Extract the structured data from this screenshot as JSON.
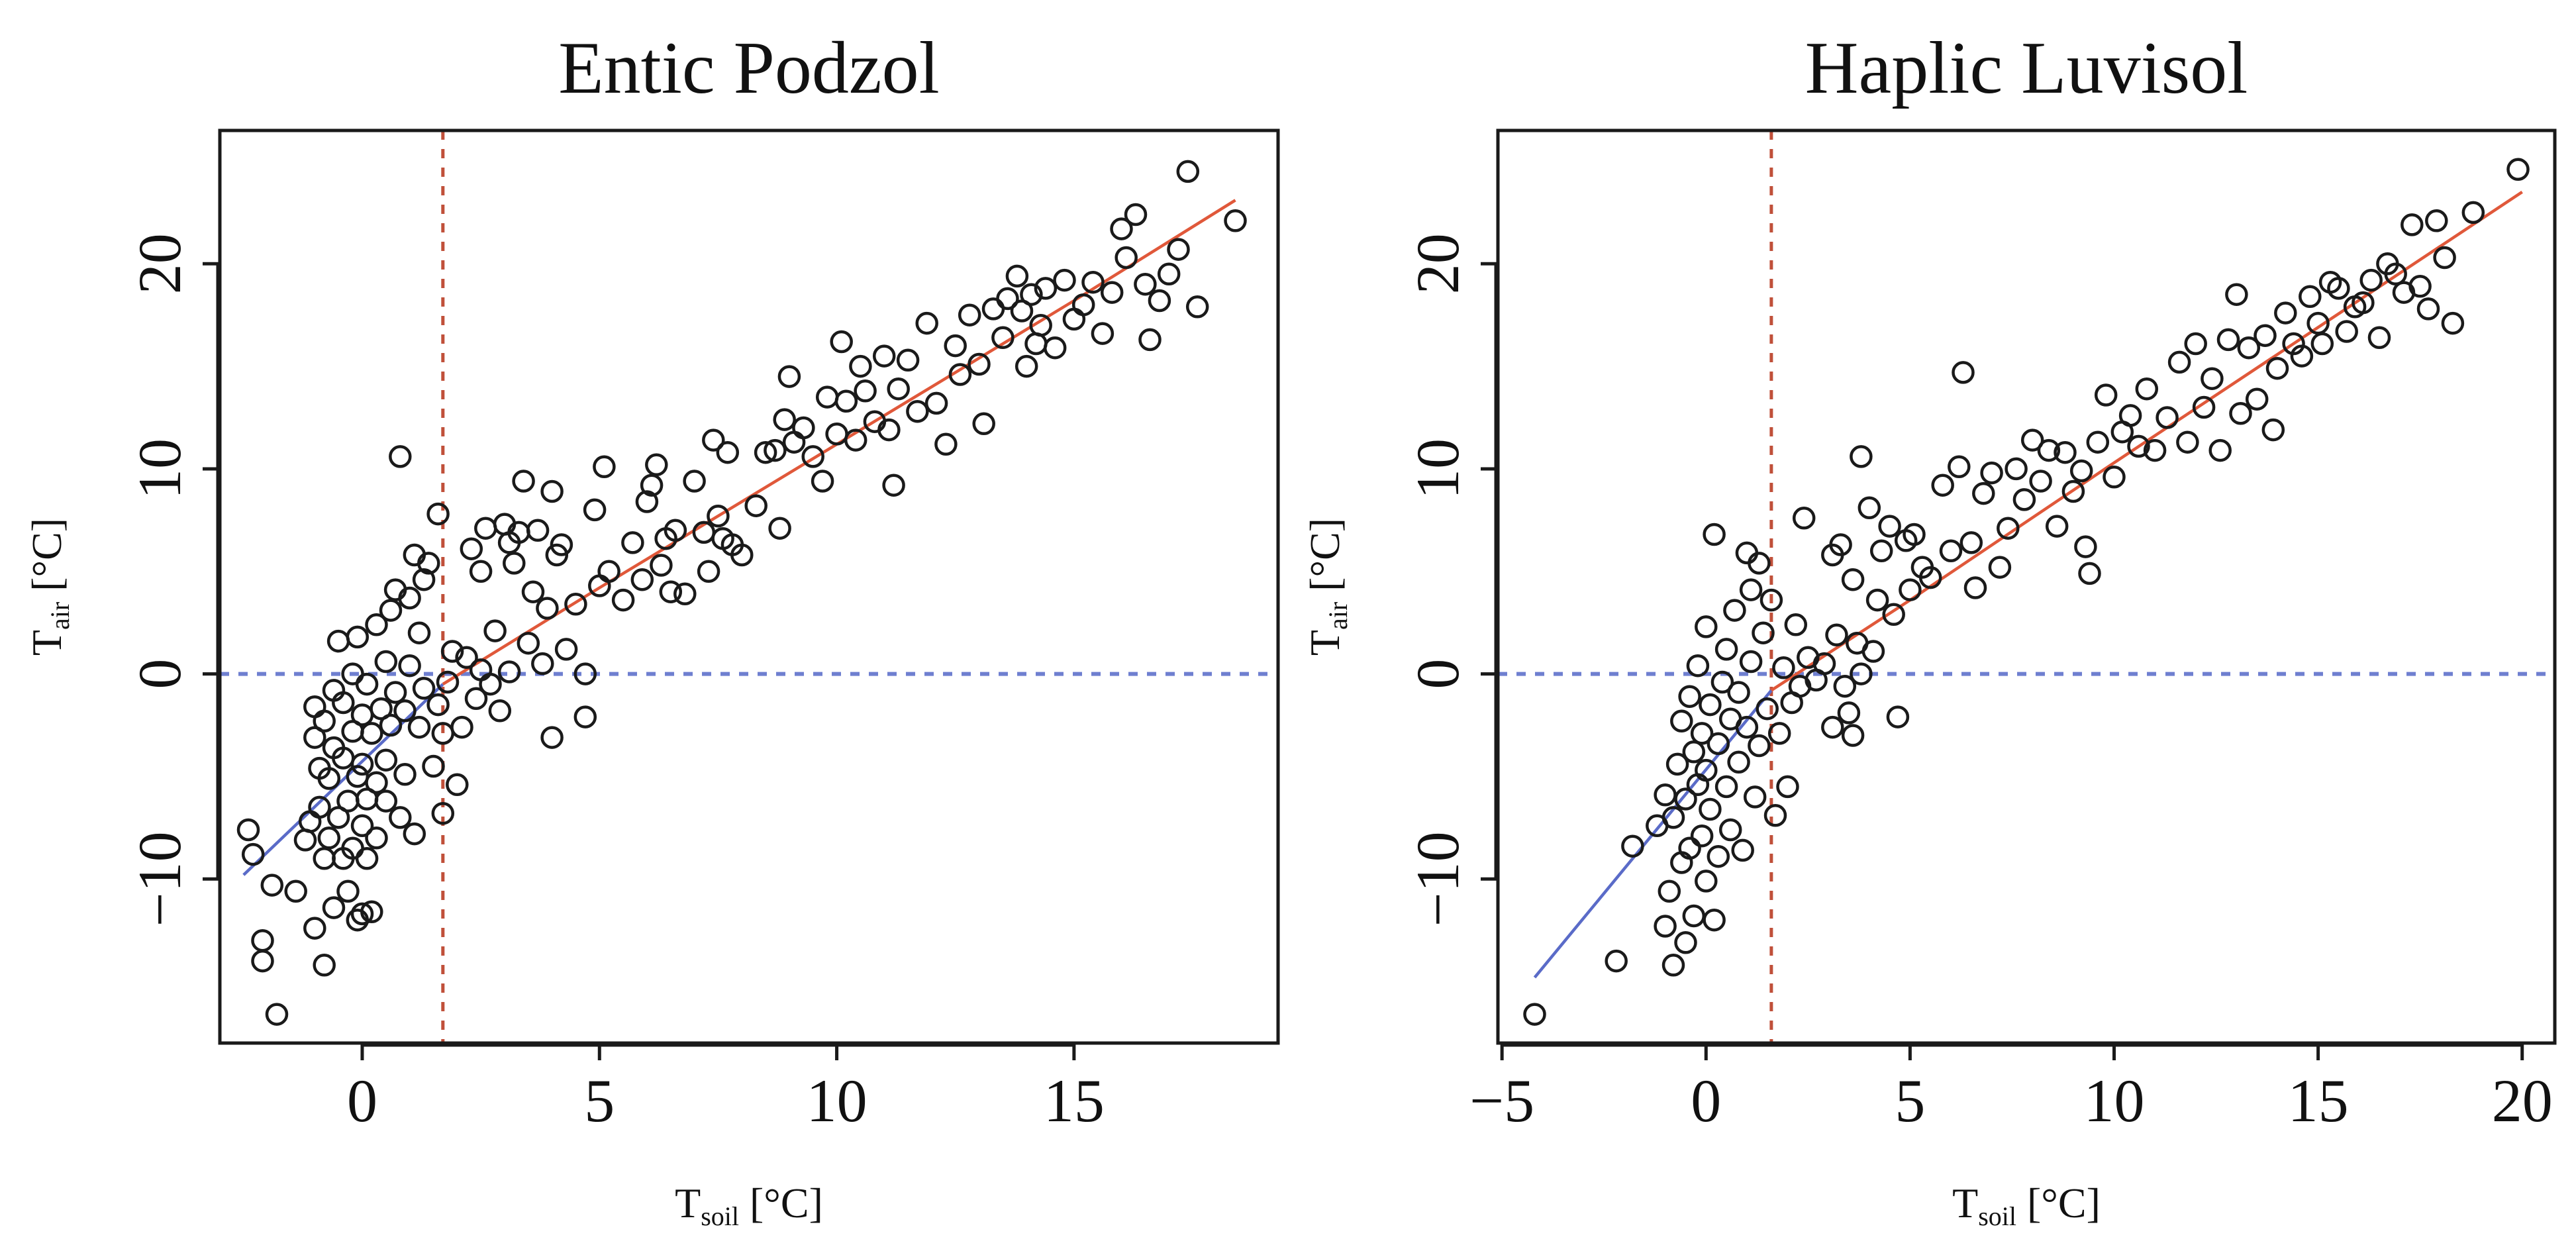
{
  "chart_data": [
    {
      "type": "scatter",
      "title": "Entic Podzol",
      "xlabel": {
        "base": "T",
        "sub": "soil",
        "unit": " [°C]"
      },
      "ylabel": {
        "base": "T",
        "sub": "air",
        "unit": " [°C]"
      },
      "xlim": [
        -3,
        19.3
      ],
      "ylim": [
        -18,
        26.5
      ],
      "xticks": [
        "0",
        "5",
        "10",
        "15"
      ],
      "yticks": [
        "-10",
        "0",
        "10",
        "20"
      ],
      "xticks_values": [
        0,
        5,
        10,
        15
      ],
      "yticks_values": [
        -10,
        0,
        10,
        20
      ],
      "threshold_x": 1.7,
      "reference_y": 0,
      "fit_low": [
        [
          -2.5,
          -9.8
        ],
        [
          1.7,
          -0.5
        ]
      ],
      "fit_high": [
        [
          1.7,
          -0.5
        ],
        [
          5,
          4.2
        ],
        [
          10,
          11.2
        ],
        [
          15,
          18.2
        ],
        [
          18.4,
          23.1
        ]
      ],
      "points": [
        [
          -2.4,
          -7.6
        ],
        [
          -2.3,
          -8.8
        ],
        [
          -2.1,
          -13
        ],
        [
          -2.1,
          -14
        ],
        [
          -1.9,
          -10.3
        ],
        [
          -1.8,
          -16.6
        ],
        [
          -1.4,
          -10.6
        ],
        [
          -1.2,
          -8.1
        ],
        [
          -1.1,
          -7.2
        ],
        [
          -1.0,
          -12.4
        ],
        [
          -1.0,
          -1.6
        ],
        [
          -1.0,
          -3.1
        ],
        [
          -0.9,
          -4.6
        ],
        [
          -0.9,
          -6.5
        ],
        [
          -0.8,
          -9.0
        ],
        [
          -0.8,
          -2.3
        ],
        [
          -0.8,
          -14.2
        ],
        [
          -0.7,
          -5.1
        ],
        [
          -0.7,
          -8.0
        ],
        [
          -0.6,
          -11.4
        ],
        [
          -0.6,
          -3.6
        ],
        [
          -0.6,
          -0.8
        ],
        [
          -0.5,
          -7.0
        ],
        [
          -0.5,
          1.6
        ],
        [
          -0.4,
          -9.0
        ],
        [
          -0.4,
          -4.1
        ],
        [
          -0.4,
          -1.4
        ],
        [
          -0.3,
          -6.2
        ],
        [
          -0.3,
          -10.6
        ],
        [
          -0.2,
          -2.8
        ],
        [
          -0.2,
          0.0
        ],
        [
          -0.2,
          -8.5
        ],
        [
          -0.1,
          -12.0
        ],
        [
          -0.1,
          -5.0
        ],
        [
          -0.1,
          1.8
        ],
        [
          0.0,
          -7.4
        ],
        [
          0.0,
          -2.0
        ],
        [
          0.0,
          -11.7
        ],
        [
          0.0,
          -4.4
        ],
        [
          0.1,
          -6.1
        ],
        [
          0.1,
          -0.5
        ],
        [
          0.1,
          -9.0
        ],
        [
          0.2,
          -2.9
        ],
        [
          0.2,
          -11.6
        ],
        [
          0.3,
          2.4
        ],
        [
          0.3,
          -5.3
        ],
        [
          0.3,
          -8.0
        ],
        [
          0.4,
          -1.7
        ],
        [
          0.5,
          0.6
        ],
        [
          0.5,
          -6.2
        ],
        [
          0.5,
          -4.2
        ],
        [
          0.6,
          3.1
        ],
        [
          0.6,
          -2.5
        ],
        [
          0.7,
          -0.9
        ],
        [
          0.7,
          4.1
        ],
        [
          0.8,
          10.6
        ],
        [
          0.8,
          -7.0
        ],
        [
          0.9,
          -4.9
        ],
        [
          0.9,
          -1.8
        ],
        [
          1.0,
          3.7
        ],
        [
          1.0,
          0.4
        ],
        [
          1.1,
          5.8
        ],
        [
          1.1,
          -7.8
        ],
        [
          1.2,
          2.0
        ],
        [
          1.2,
          -2.6
        ],
        [
          1.3,
          4.6
        ],
        [
          1.3,
          -0.7
        ],
        [
          1.4,
          5.4
        ],
        [
          1.5,
          -4.5
        ],
        [
          1.6,
          7.8
        ],
        [
          1.6,
          -1.5
        ],
        [
          1.7,
          -2.9
        ],
        [
          1.7,
          -6.8
        ],
        [
          1.8,
          -0.4
        ],
        [
          1.9,
          1.1
        ],
        [
          2.0,
          -5.4
        ],
        [
          2.1,
          -2.6
        ],
        [
          2.2,
          0.8
        ],
        [
          2.3,
          6.1
        ],
        [
          2.4,
          -1.2
        ],
        [
          2.5,
          5.0
        ],
        [
          2.5,
          0.2
        ],
        [
          2.6,
          7.1
        ],
        [
          2.7,
          -0.5
        ],
        [
          2.8,
          2.1
        ],
        [
          2.9,
          -1.8
        ],
        [
          3.0,
          7.3
        ],
        [
          3.1,
          6.4
        ],
        [
          3.1,
          0.1
        ],
        [
          3.2,
          5.4
        ],
        [
          3.3,
          6.9
        ],
        [
          3.4,
          9.4
        ],
        [
          3.5,
          1.5
        ],
        [
          3.6,
          4.0
        ],
        [
          3.7,
          7.0
        ],
        [
          3.8,
          0.5
        ],
        [
          3.9,
          3.2
        ],
        [
          4.0,
          -3.1
        ],
        [
          4.0,
          8.9
        ],
        [
          4.1,
          5.8
        ],
        [
          4.2,
          6.3
        ],
        [
          4.3,
          1.2
        ],
        [
          4.5,
          3.4
        ],
        [
          4.7,
          -2.1
        ],
        [
          4.7,
          0.0
        ],
        [
          4.9,
          8.0
        ],
        [
          5.0,
          4.3
        ],
        [
          5.1,
          10.1
        ],
        [
          5.2,
          5.0
        ],
        [
          5.5,
          3.6
        ],
        [
          5.7,
          6.4
        ],
        [
          5.9,
          4.6
        ],
        [
          6.0,
          8.4
        ],
        [
          6.1,
          9.2
        ],
        [
          6.2,
          10.2
        ],
        [
          6.3,
          5.3
        ],
        [
          6.4,
          6.6
        ],
        [
          6.5,
          4.0
        ],
        [
          6.6,
          7.0
        ],
        [
          6.8,
          3.9
        ],
        [
          7.0,
          9.4
        ],
        [
          7.2,
          6.9
        ],
        [
          7.3,
          5.0
        ],
        [
          7.4,
          11.4
        ],
        [
          7.5,
          7.7
        ],
        [
          7.6,
          6.6
        ],
        [
          7.7,
          10.8
        ],
        [
          7.8,
          6.3
        ],
        [
          8.0,
          5.8
        ],
        [
          8.3,
          8.2
        ],
        [
          8.5,
          10.8
        ],
        [
          8.7,
          10.9
        ],
        [
          8.8,
          7.1
        ],
        [
          8.9,
          12.4
        ],
        [
          9.0,
          14.5
        ],
        [
          9.1,
          11.3
        ],
        [
          9.3,
          12.0
        ],
        [
          9.5,
          10.6
        ],
        [
          9.7,
          9.4
        ],
        [
          9.8,
          13.5
        ],
        [
          10.0,
          11.7
        ],
        [
          10.1,
          16.2
        ],
        [
          10.2,
          13.3
        ],
        [
          10.4,
          11.4
        ],
        [
          10.5,
          15.0
        ],
        [
          10.6,
          13.8
        ],
        [
          10.8,
          12.3
        ],
        [
          11.0,
          15.5
        ],
        [
          11.1,
          11.9
        ],
        [
          11.2,
          9.2
        ],
        [
          11.3,
          13.9
        ],
        [
          11.5,
          15.3
        ],
        [
          11.7,
          12.8
        ],
        [
          11.9,
          17.1
        ],
        [
          12.1,
          13.2
        ],
        [
          12.3,
          11.2
        ],
        [
          12.5,
          16.0
        ],
        [
          12.6,
          14.6
        ],
        [
          12.8,
          17.5
        ],
        [
          13.0,
          15.1
        ],
        [
          13.1,
          12.2
        ],
        [
          13.3,
          17.8
        ],
        [
          13.5,
          16.4
        ],
        [
          13.6,
          18.3
        ],
        [
          13.8,
          19.4
        ],
        [
          13.9,
          17.7
        ],
        [
          14.0,
          15.0
        ],
        [
          14.1,
          18.5
        ],
        [
          14.2,
          16.1
        ],
        [
          14.3,
          17.0
        ],
        [
          14.4,
          18.8
        ],
        [
          14.6,
          15.9
        ],
        [
          14.8,
          19.2
        ],
        [
          15.0,
          17.3
        ],
        [
          15.2,
          18.0
        ],
        [
          15.4,
          19.1
        ],
        [
          15.6,
          16.6
        ],
        [
          15.8,
          18.6
        ],
        [
          16.0,
          21.7
        ],
        [
          16.1,
          20.3
        ],
        [
          16.3,
          22.4
        ],
        [
          16.5,
          19.0
        ],
        [
          16.6,
          16.3
        ],
        [
          16.8,
          18.2
        ],
        [
          17.0,
          19.5
        ],
        [
          17.2,
          20.7
        ],
        [
          17.4,
          24.5
        ],
        [
          17.6,
          17.9
        ],
        [
          18.4,
          22.1
        ]
      ]
    },
    {
      "type": "scatter",
      "title": "Haplic Luvisol",
      "xlabel": {
        "base": "T",
        "sub": "soil",
        "unit": " [°C]"
      },
      "ylabel": {
        "base": "T",
        "sub": "air",
        "unit": " [°C]"
      },
      "xlim": [
        -5.1,
        20.8
      ],
      "ylim": [
        -18,
        26.5
      ],
      "xticks": [
        "-5",
        "0",
        "5",
        "10",
        "15",
        "20"
      ],
      "yticks": [
        "-10",
        "0",
        "10",
        "20"
      ],
      "xticks_values": [
        -5,
        0,
        5,
        10,
        15,
        20
      ],
      "yticks_values": [
        -10,
        0,
        10,
        20
      ],
      "threshold_x": 1.6,
      "reference_y": 0,
      "fit_low": [
        [
          -4.2,
          -14.8
        ],
        [
          1.6,
          -0.8
        ]
      ],
      "fit_high": [
        [
          1.6,
          -0.8
        ],
        [
          5,
          3.6
        ],
        [
          10,
          10.3
        ],
        [
          15,
          16.9
        ],
        [
          20,
          23.5
        ]
      ],
      "points": [
        [
          -4.2,
          -16.6
        ],
        [
          -2.2,
          -14.0
        ],
        [
          -1.8,
          -8.4
        ],
        [
          -1.2,
          -7.4
        ],
        [
          -1.0,
          -5.9
        ],
        [
          -1.0,
          -12.3
        ],
        [
          -0.9,
          -10.6
        ],
        [
          -0.8,
          -14.2
        ],
        [
          -0.8,
          -7.0
        ],
        [
          -0.7,
          -4.4
        ],
        [
          -0.6,
          -9.2
        ],
        [
          -0.6,
          -2.3
        ],
        [
          -0.5,
          -13.1
        ],
        [
          -0.5,
          -6.1
        ],
        [
          -0.4,
          -1.1
        ],
        [
          -0.4,
          -8.5
        ],
        [
          -0.3,
          -3.8
        ],
        [
          -0.3,
          -11.8
        ],
        [
          -0.2,
          -5.4
        ],
        [
          -0.2,
          0.4
        ],
        [
          -0.1,
          -7.9
        ],
        [
          -0.1,
          -2.9
        ],
        [
          0.0,
          -10.1
        ],
        [
          0.0,
          -4.7
        ],
        [
          0.0,
          2.3
        ],
        [
          0.1,
          -6.6
        ],
        [
          0.1,
          -1.5
        ],
        [
          0.2,
          -12.0
        ],
        [
          0.2,
          6.8
        ],
        [
          0.3,
          -3.4
        ],
        [
          0.3,
          -8.9
        ],
        [
          0.4,
          -0.4
        ],
        [
          0.5,
          -5.5
        ],
        [
          0.5,
          1.2
        ],
        [
          0.6,
          -2.2
        ],
        [
          0.6,
          -7.6
        ],
        [
          0.7,
          3.1
        ],
        [
          0.8,
          -4.3
        ],
        [
          0.8,
          -0.9
        ],
        [
          0.9,
          -8.6
        ],
        [
          1.0,
          5.9
        ],
        [
          1.0,
          -2.6
        ],
        [
          1.1,
          4.1
        ],
        [
          1.1,
          0.6
        ],
        [
          1.2,
          -6.0
        ],
        [
          1.3,
          5.4
        ],
        [
          1.3,
          -3.5
        ],
        [
          1.4,
          2.0
        ],
        [
          1.5,
          -1.7
        ],
        [
          1.6,
          3.6
        ],
        [
          1.7,
          -6.9
        ],
        [
          1.8,
          -2.9
        ],
        [
          1.9,
          0.3
        ],
        [
          2.0,
          -5.5
        ],
        [
          2.1,
          -1.4
        ],
        [
          2.2,
          2.4
        ],
        [
          2.3,
          -0.6
        ],
        [
          2.4,
          7.6
        ],
        [
          2.5,
          0.8
        ],
        [
          2.7,
          -0.3
        ],
        [
          2.9,
          0.5
        ],
        [
          3.1,
          5.8
        ],
        [
          3.1,
          -2.6
        ],
        [
          3.2,
          1.9
        ],
        [
          3.3,
          6.3
        ],
        [
          3.4,
          -0.6
        ],
        [
          3.5,
          -1.9
        ],
        [
          3.6,
          4.6
        ],
        [
          3.6,
          -3.0
        ],
        [
          3.7,
          1.5
        ],
        [
          3.8,
          10.6
        ],
        [
          3.8,
          0.0
        ],
        [
          4.0,
          8.1
        ],
        [
          4.1,
          1.1
        ],
        [
          4.2,
          3.6
        ],
        [
          4.3,
          6.0
        ],
        [
          4.5,
          7.2
        ],
        [
          4.6,
          2.9
        ],
        [
          4.7,
          -2.1
        ],
        [
          4.9,
          6.5
        ],
        [
          5.0,
          4.1
        ],
        [
          5.1,
          6.8
        ],
        [
          5.3,
          5.2
        ],
        [
          5.5,
          4.7
        ],
        [
          5.8,
          9.2
        ],
        [
          6.0,
          6.0
        ],
        [
          6.2,
          10.1
        ],
        [
          6.3,
          14.7
        ],
        [
          6.5,
          6.4
        ],
        [
          6.6,
          4.2
        ],
        [
          6.8,
          8.8
        ],
        [
          7.0,
          9.8
        ],
        [
          7.2,
          5.2
        ],
        [
          7.4,
          7.1
        ],
        [
          7.6,
          10.0
        ],
        [
          7.8,
          8.5
        ],
        [
          8.0,
          11.4
        ],
        [
          8.2,
          9.4
        ],
        [
          8.4,
          10.9
        ],
        [
          8.6,
          7.2
        ],
        [
          8.8,
          10.8
        ],
        [
          9.0,
          8.9
        ],
        [
          9.2,
          9.9
        ],
        [
          9.3,
          6.2
        ],
        [
          9.4,
          4.9
        ],
        [
          9.6,
          11.3
        ],
        [
          9.8,
          13.6
        ],
        [
          10.0,
          9.6
        ],
        [
          10.2,
          11.8
        ],
        [
          10.4,
          12.6
        ],
        [
          10.6,
          11.1
        ],
        [
          10.8,
          13.9
        ],
        [
          11.0,
          10.9
        ],
        [
          11.3,
          12.5
        ],
        [
          11.6,
          15.2
        ],
        [
          11.8,
          11.3
        ],
        [
          12.0,
          16.1
        ],
        [
          12.2,
          13.0
        ],
        [
          12.4,
          14.4
        ],
        [
          12.6,
          10.9
        ],
        [
          12.8,
          16.3
        ],
        [
          13.0,
          18.5
        ],
        [
          13.1,
          12.7
        ],
        [
          13.3,
          15.9
        ],
        [
          13.5,
          13.4
        ],
        [
          13.7,
          16.5
        ],
        [
          13.9,
          11.9
        ],
        [
          14.0,
          14.9
        ],
        [
          14.2,
          17.6
        ],
        [
          14.4,
          16.1
        ],
        [
          14.6,
          15.5
        ],
        [
          14.8,
          18.4
        ],
        [
          15.0,
          17.1
        ],
        [
          15.1,
          16.1
        ],
        [
          15.3,
          19.1
        ],
        [
          15.5,
          18.8
        ],
        [
          15.7,
          16.7
        ],
        [
          15.9,
          17.9
        ],
        [
          16.1,
          18.1
        ],
        [
          16.3,
          19.2
        ],
        [
          16.5,
          16.4
        ],
        [
          16.7,
          20.0
        ],
        [
          16.9,
          19.5
        ],
        [
          17.1,
          18.6
        ],
        [
          17.3,
          21.9
        ],
        [
          17.5,
          18.9
        ],
        [
          17.7,
          17.8
        ],
        [
          17.9,
          22.1
        ],
        [
          18.1,
          20.3
        ],
        [
          18.3,
          17.1
        ],
        [
          18.8,
          22.5
        ],
        [
          19.9,
          24.6
        ]
      ]
    }
  ]
}
